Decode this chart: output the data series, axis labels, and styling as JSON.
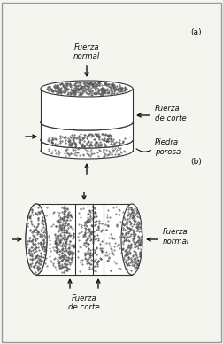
{
  "fig_width": 2.53,
  "fig_height": 3.88,
  "dpi": 100,
  "bg_color": "#f5f5f0",
  "border_color": "#999999",
  "label_a": "(a)",
  "label_b": "(b)",
  "text_fuerza_normal_a": "Fuerza\nnormal",
  "text_fuerza_corte_a": "Fuerza\nde corte",
  "text_piedra_porosa": "Piedra\nporosa",
  "text_fuerza_normal_b": "Fuerza\nnormal",
  "text_fuerza_corte_b": "Fuerza\nde corte",
  "disk_fill": "#ffffff",
  "disk_edge": "#333333",
  "stipple_color": "#555555",
  "arrow_color": "#111111",
  "text_color": "#111111",
  "font_size": 6.2
}
